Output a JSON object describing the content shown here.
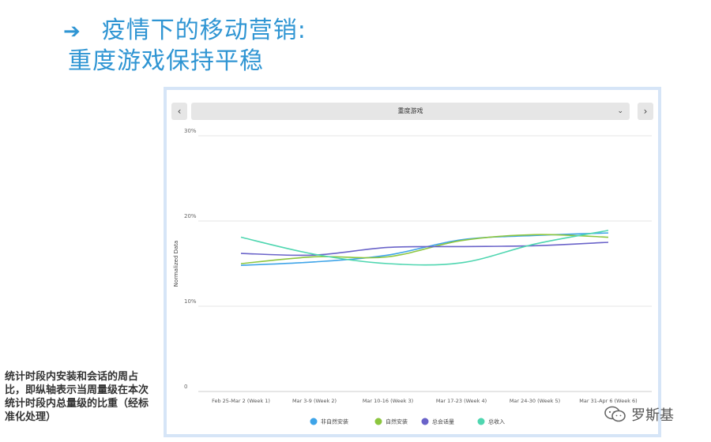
{
  "header": {
    "arrow": "➔",
    "title_line1": "疫情下的移动营销:",
    "title_line2": "重度游戏保持平稳"
  },
  "panel": {
    "prev_label": "‹",
    "next_label": "›",
    "dropdown_label": "重度游戏",
    "dropdown_chevron": "⌄"
  },
  "caption": "统计时段内安装和会话的周占比，即纵轴表示当周量级在本次统计时段内总量级的比重（经标准化处理）",
  "watermark": {
    "text": "罗斯基",
    "icon": "wechat-icon"
  },
  "colors": {
    "accent": "#2f95d3",
    "panel_border": "#d6e5f7"
  },
  "chart_data": {
    "type": "line",
    "title": "",
    "xlabel": "",
    "ylabel": "Normalized Data",
    "ylim": [
      0,
      30
    ],
    "yticks": [
      0,
      10,
      20,
      30
    ],
    "ytick_labels": [
      "0",
      "10%",
      "20%",
      "30%"
    ],
    "grid": true,
    "legend_position": "bottom",
    "categories": [
      "Feb 25-Mar 2 (Week 1)",
      "Mar 3-9 (Week 2)",
      "Mar 10-16 (Week 3)",
      "Mar 17-23 (Week 4)",
      "Mar 24-30 (Week 5)",
      "Mar 31-Apr 6 (Week 6)"
    ],
    "series": [
      {
        "name": "非自然安装",
        "color": "#3ea4e8",
        "values": [
          14.8,
          15.2,
          16.0,
          17.8,
          18.3,
          18.6
        ]
      },
      {
        "name": "自然安装",
        "color": "#8cc63f",
        "values": [
          15.0,
          15.8,
          15.8,
          17.7,
          18.4,
          18.1
        ]
      },
      {
        "name": "总会话量",
        "color": "#6a63c9",
        "values": [
          16.2,
          16.0,
          16.9,
          17.0,
          17.1,
          17.5
        ]
      },
      {
        "name": "总收入",
        "color": "#4fd6b0",
        "values": [
          18.1,
          16.1,
          15.0,
          15.1,
          17.3,
          18.9
        ]
      }
    ]
  }
}
